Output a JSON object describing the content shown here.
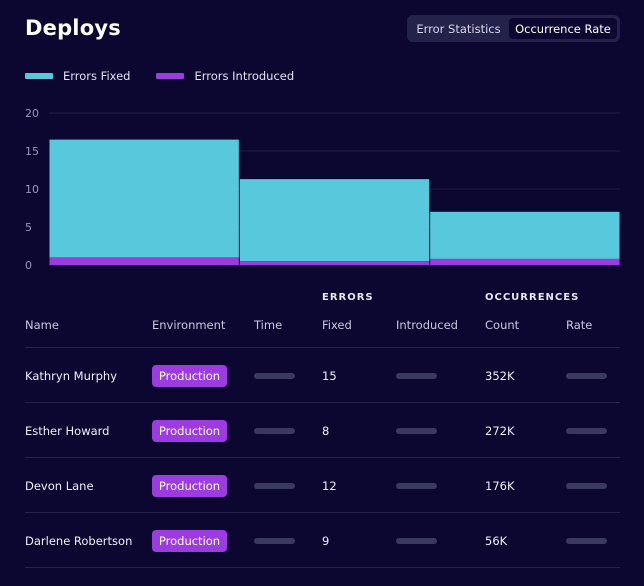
{
  "header": {
    "title": "Deploys",
    "toggle": {
      "options": [
        "Error Statistics",
        "Occurrence Rate"
      ],
      "selected": "Occurrence Rate"
    }
  },
  "legend": {
    "fixed_label": "Errors Fixed",
    "introduced_label": "Errors Introduced"
  },
  "colors": {
    "errors_fixed": "#58c8dc",
    "errors_introduced": "#9b3be0",
    "background": "#0b0730",
    "badge": "#9b3be0"
  },
  "chart_data": {
    "type": "bar",
    "stacked": true,
    "categories": [
      "",
      "",
      ""
    ],
    "series": [
      {
        "name": "Errors Introduced",
        "values": [
          1,
          0.5,
          0.8
        ]
      },
      {
        "name": "Errors Fixed",
        "values": [
          15.5,
          10.8,
          6.2
        ]
      }
    ],
    "y_ticks": [
      0,
      5,
      10,
      15,
      20
    ],
    "ylim": [
      0,
      20
    ],
    "grid": true
  },
  "table": {
    "group_headers": {
      "errors": "ERRORS",
      "occurrences": "OCCURRENCES"
    },
    "columns": {
      "name": "Name",
      "environment": "Environment",
      "time": "Time",
      "fixed": "Fixed",
      "introduced": "Introduced",
      "count": "Count",
      "rate": "Rate"
    },
    "rows": [
      {
        "name": "Kathryn Murphy",
        "environment": "Production",
        "fixed": "15",
        "count": "352K"
      },
      {
        "name": "Esther Howard",
        "environment": "Production",
        "fixed": "8",
        "count": "272K"
      },
      {
        "name": "Devon Lane",
        "environment": "Production",
        "fixed": "12",
        "count": "176K"
      },
      {
        "name": "Darlene Robertson",
        "environment": "Production",
        "fixed": "9",
        "count": "56K"
      }
    ]
  }
}
